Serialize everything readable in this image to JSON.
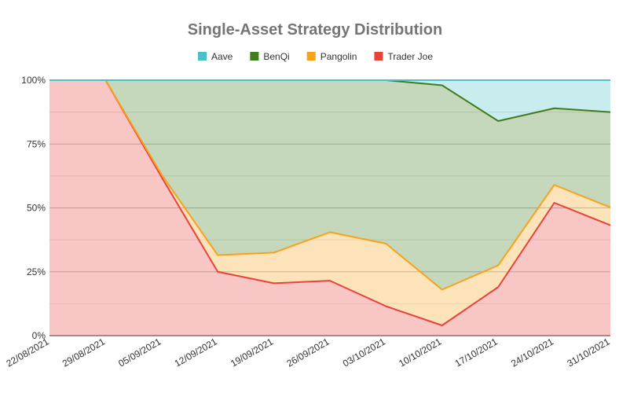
{
  "chart_data": {
    "type": "area",
    "stacked": "percent",
    "title": "Single-Asset Strategy Distribution",
    "xlabel": "",
    "ylabel": "",
    "categories": [
      "22/08/2021",
      "29/08/2021",
      "05/09/2021",
      "12/09/2021",
      "19/09/2021",
      "26/09/2021",
      "03/10/2021",
      "10/10/2021",
      "17/10/2021",
      "24/10/2021",
      "31/10/2021"
    ],
    "y_ticks": [
      "0%",
      "25%",
      "50%",
      "75%",
      "100%"
    ],
    "ylim": [
      0,
      100
    ],
    "grid": true,
    "legend": "top",
    "series": [
      {
        "name": "Aave",
        "color": "#4cbfc9",
        "values": [
          0,
          0,
          0,
          0,
          0,
          0,
          0,
          2,
          16,
          11,
          12.5
        ]
      },
      {
        "name": "BenQi",
        "color": "#3f7d1f",
        "values": [
          0,
          0,
          37,
          68.5,
          67.5,
          59.5,
          64,
          80,
          56.5,
          30,
          37.3
        ]
      },
      {
        "name": "Pangolin",
        "color": "#f7a21b",
        "values": [
          0,
          0,
          1,
          6.5,
          12,
          19,
          24.5,
          14,
          8.5,
          7,
          7
        ]
      },
      {
        "name": "Trader Joe",
        "color": "#e8433a",
        "values": [
          100,
          100,
          62,
          25,
          20.5,
          21.5,
          11.5,
          4,
          19,
          52,
          43.2
        ]
      }
    ]
  }
}
